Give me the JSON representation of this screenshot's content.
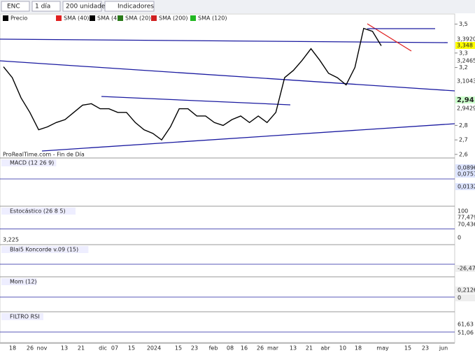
{
  "toolbar": {
    "symbol": "ENC",
    "period": "1 día",
    "units": "200 unidades",
    "indicators": "Indicadores"
  },
  "legend": [
    "Precio",
    "SMA (40)",
    "SMA (4)",
    "SMA (20)",
    "SMA (200)",
    "SMA (120)"
  ],
  "main": {
    "source": "ProRealTime.com - Fin de Día",
    "ylim": [
      2.58,
      3.56
    ],
    "yticks": [
      {
        "value": 3.5,
        "label": "3,5"
      },
      {
        "value": 3.3,
        "label": "3,3"
      },
      {
        "value": 3.2,
        "label": "3,2"
      },
      {
        "value": 2.8,
        "label": "2,8"
      },
      {
        "value": 2.7,
        "label": "2,7"
      },
      {
        "value": 2.6,
        "label": "2,6"
      }
    ],
    "markers": [
      "3,3920",
      "3,348",
      "3,2465",
      "3,1043",
      "2,94",
      "2,9429"
    ],
    "close": [
      3.205,
      3.13,
      2.99,
      2.89,
      2.77,
      2.79,
      2.82,
      2.84,
      2.89,
      2.94,
      2.95,
      2.915,
      2.915,
      2.89,
      2.89,
      2.82,
      2.77,
      2.745,
      2.7,
      2.79,
      2.915,
      2.915,
      2.865,
      2.865,
      2.82,
      2.8,
      2.84,
      2.865,
      2.82,
      2.865,
      2.82,
      2.89,
      3.13,
      3.18,
      3.25,
      3.33,
      3.25,
      3.16,
      3.13,
      3.08,
      3.2,
      3.47,
      3.45,
      3.35
    ]
  },
  "panels": [
    {
      "title": "MACD (12 26 9)",
      "labels": [
        "0,0896",
        "0,0757",
        "0,0132"
      ]
    },
    {
      "title": "Estocástico (26 8 5)",
      "labels": [
        "100",
        "77,479",
        "70,436",
        "0"
      ],
      "left": "3,225"
    },
    {
      "title": "Blai5 Koncorde v.09 (15)",
      "labels": [
        "-26,47"
      ]
    },
    {
      "title": "Mom (12)",
      "labels": [
        "0,2126",
        "0"
      ]
    },
    {
      "title": "FILTRO RSI",
      "labels": [
        "61,63",
        "51,06"
      ]
    }
  ],
  "x_labels": [
    "18",
    "26",
    "nov",
    "13",
    "21",
    "dic",
    "07",
    "15",
    "2024",
    "15",
    "23",
    "feb",
    "08",
    "16",
    "26",
    "mar",
    "13",
    "21",
    "abr",
    "10",
    "18",
    "may",
    "15",
    "23",
    "jun"
  ]
}
